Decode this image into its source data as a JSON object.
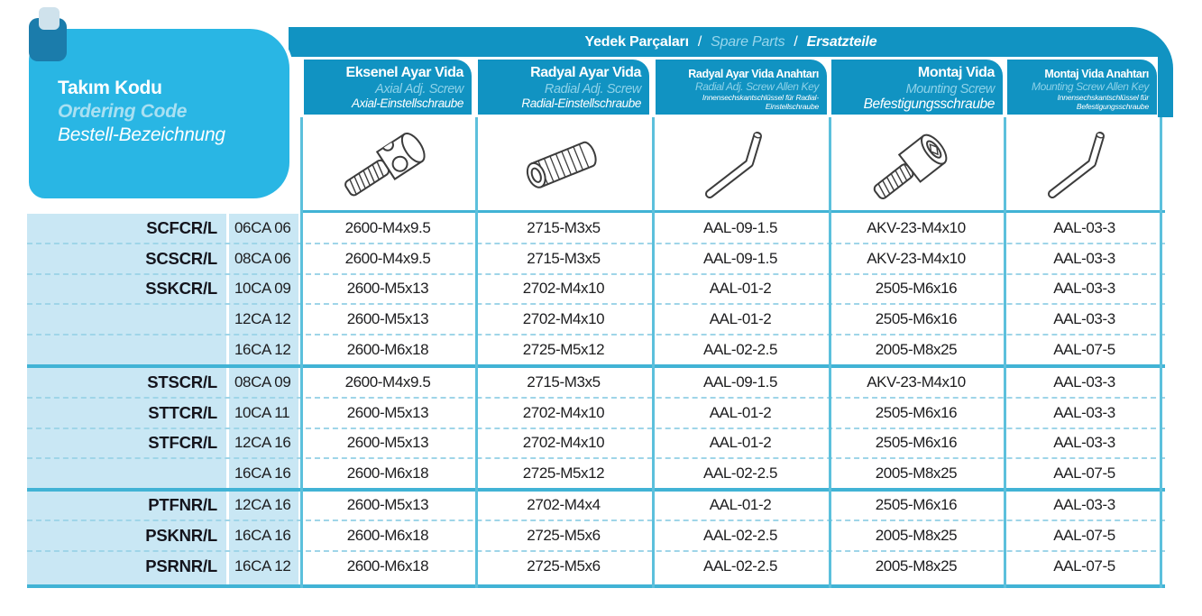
{
  "header": {
    "tr": "Yedek Parçaları",
    "en": "Spare Parts",
    "de": "Ersatzteile",
    "separator": "/"
  },
  "ordering_code": {
    "tr": "Takım Kodu",
    "en": "Ordering Code",
    "de": "Bestell-Bezeichnung"
  },
  "table": {
    "columns": [
      {
        "id": "axial_screw",
        "tr": "Eksenel Ayar Vida",
        "en": "Axial Adj. Screw",
        "de": "Axial-Einstellschraube",
        "icon": "axial-screw-icon"
      },
      {
        "id": "radial_screw",
        "tr": "Radyal Ayar Vida",
        "en": "Radial Adj. Screw",
        "de": "Radial-Einstellschraube",
        "icon": "set-screw-icon"
      },
      {
        "id": "radial_screw_allen_key",
        "tr": "Radyal Ayar Vida Anahtarı",
        "en": "Radial Adj. Screw Allen Key",
        "de": "Innensechskantschlüssel für Radial-Einstellschraube",
        "icon": "allen-key-icon"
      },
      {
        "id": "mounting_screw",
        "tr": "Montaj Vida",
        "en": "Mounting Screw",
        "de": "Befestigungsschraube",
        "icon": "cap-screw-icon"
      },
      {
        "id": "mounting_screw_allen_key",
        "tr": "Montaj Vida Anahtarı",
        "en": "Mounting Screw Allen Key",
        "de": "Innensechskantschlüssel für Befestigungsschraube",
        "icon": "allen-key-icon"
      }
    ],
    "row_fields": [
      "tool-code",
      "insert-size-code",
      "axial-screw",
      "radial-screw",
      "radial-screw-allen-key",
      "mounting-screw",
      "mounting-screw-allen-key"
    ],
    "groups": [
      {
        "rows": [
          [
            "SCFCR/L",
            "06CA 06",
            "2600-M4x9.5",
            "2715-M3x5",
            "AAL-09-1.5",
            "AKV-23-M4x10",
            "AAL-03-3"
          ],
          [
            "SCSCR/L",
            "08CA 06",
            "2600-M4x9.5",
            "2715-M3x5",
            "AAL-09-1.5",
            "AKV-23-M4x10",
            "AAL-03-3"
          ],
          [
            "SSKCR/L",
            "10CA 09",
            "2600-M5x13",
            "2702-M4x10",
            "AAL-01-2",
            "2505-M6x16",
            "AAL-03-3"
          ],
          [
            "",
            "12CA 12",
            "2600-M5x13",
            "2702-M4x10",
            "AAL-01-2",
            "2505-M6x16",
            "AAL-03-3"
          ],
          [
            "",
            "16CA 12",
            "2600-M6x18",
            "2725-M5x12",
            "AAL-02-2.5",
            "2005-M8x25",
            "AAL-07-5"
          ]
        ]
      },
      {
        "rows": [
          [
            "STSCR/L",
            "08CA 09",
            "2600-M4x9.5",
            "2715-M3x5",
            "AAL-09-1.5",
            "AKV-23-M4x10",
            "AAL-03-3"
          ],
          [
            "STTCR/L",
            "10CA 11",
            "2600-M5x13",
            "2702-M4x10",
            "AAL-01-2",
            "2505-M6x16",
            "AAL-03-3"
          ],
          [
            "STFCR/L",
            "12CA 16",
            "2600-M5x13",
            "2702-M4x10",
            "AAL-01-2",
            "2505-M6x16",
            "AAL-03-3"
          ],
          [
            "",
            "16CA 16",
            "2600-M6x18",
            "2725-M5x12",
            "AAL-02-2.5",
            "2005-M8x25",
            "AAL-07-5"
          ]
        ]
      },
      {
        "rows": [
          [
            "PTFNR/L",
            "12CA 16",
            "2600-M5x13",
            "2702-M4x4",
            "AAL-01-2",
            "2505-M6x16",
            "AAL-03-3"
          ],
          [
            "PSKNR/L",
            "16CA 16",
            "2600-M6x18",
            "2725-M5x6",
            "AAL-02-2.5",
            "2005-M8x25",
            "AAL-07-5"
          ],
          [
            "PSRNR/L",
            "16CA 12",
            "2600-M6x18",
            "2725-M5x6",
            "AAL-02-2.5",
            "2005-M8x25",
            "AAL-07-5"
          ]
        ]
      }
    ]
  },
  "colors": {
    "accent_teal": "#1193c2",
    "accent_cyan": "#29b6e4",
    "pale_column": "#c9e7f4",
    "grid_cyan": "#5cc0dc"
  }
}
